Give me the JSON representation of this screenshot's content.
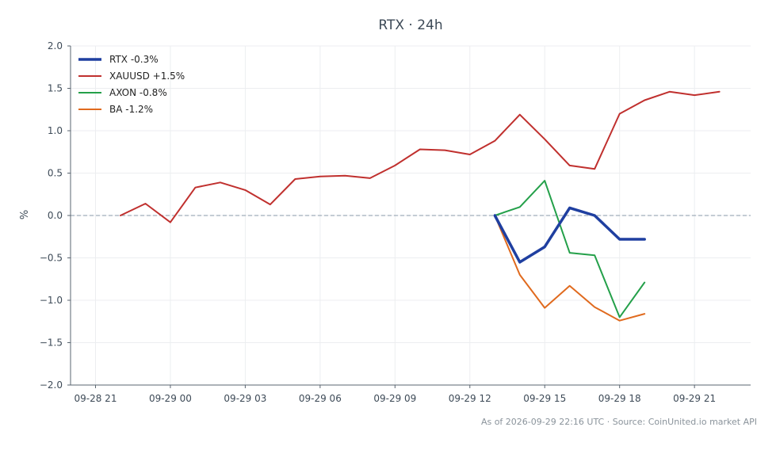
{
  "footer": {
    "note": "As of 2026-09-29 22:16 UTC · Source: CoinUnited.io market API"
  },
  "chart_data": {
    "type": "line",
    "title": "RTX · 24h",
    "xlabel": "",
    "ylabel": "%",
    "ylim": [
      -2.0,
      2.0
    ],
    "yticks": [
      -2.0,
      -1.5,
      -1.0,
      -0.5,
      0.0,
      0.5,
      1.0,
      1.5,
      2.0
    ],
    "ytick_labels": [
      "−2.0",
      "−1.5",
      "−1.0",
      "−0.5",
      "0.0",
      "0.5",
      "1.0",
      "1.5",
      "2.0"
    ],
    "x_unit": "hour",
    "xlim": [
      "2026-09-28 20:00",
      "2026-09-29 23:15"
    ],
    "xticks": [
      "2026-09-28 21:00",
      "2026-09-29 00:00",
      "2026-09-29 03:00",
      "2026-09-29 06:00",
      "2026-09-29 09:00",
      "2026-09-29 12:00",
      "2026-09-29 15:00",
      "2026-09-29 18:00",
      "2026-09-29 21:00"
    ],
    "xtick_labels": [
      "09-28 21",
      "09-29 00",
      "09-29 03",
      "09-29 06",
      "09-29 09",
      "09-29 12",
      "09-29 15",
      "09-29 18",
      "09-29 21"
    ],
    "grid": true,
    "baseline": 0.0,
    "legend_position": "top-left",
    "series": [
      {
        "name": "RTX -0.3%",
        "color": "#1f3fa0",
        "emphasis": true,
        "x": [
          "2026-09-29 13:00",
          "2026-09-29 14:00",
          "2026-09-29 15:00",
          "2026-09-29 16:00",
          "2026-09-29 17:00",
          "2026-09-29 18:00",
          "2026-09-29 19:00"
        ],
        "values": [
          0.0,
          -0.55,
          -0.37,
          0.09,
          0.0,
          -0.28,
          -0.28
        ]
      },
      {
        "name": "XAUUSD +1.5%",
        "color": "#c0302e",
        "emphasis": false,
        "x": [
          "2026-09-28 22:00",
          "2026-09-28 23:00",
          "2026-09-29 00:00",
          "2026-09-29 01:00",
          "2026-09-29 02:00",
          "2026-09-29 03:00",
          "2026-09-29 04:00",
          "2026-09-29 05:00",
          "2026-09-29 06:00",
          "2026-09-29 07:00",
          "2026-09-29 08:00",
          "2026-09-29 09:00",
          "2026-09-29 10:00",
          "2026-09-29 11:00",
          "2026-09-29 12:00",
          "2026-09-29 13:00",
          "2026-09-29 14:00",
          "2026-09-29 15:00",
          "2026-09-29 16:00",
          "2026-09-29 17:00",
          "2026-09-29 18:00",
          "2026-09-29 19:00",
          "2026-09-29 20:00",
          "2026-09-29 21:00",
          "2026-09-29 22:00"
        ],
        "values": [
          0.0,
          0.14,
          -0.08,
          0.33,
          0.39,
          0.3,
          0.13,
          0.43,
          0.46,
          0.47,
          0.44,
          0.59,
          0.78,
          0.77,
          0.72,
          0.88,
          1.19,
          0.9,
          0.59,
          0.55,
          1.2,
          1.36,
          1.46,
          1.42,
          1.46
        ]
      },
      {
        "name": "AXON -0.8%",
        "color": "#24a04a",
        "emphasis": false,
        "x": [
          "2026-09-29 13:00",
          "2026-09-29 14:00",
          "2026-09-29 15:00",
          "2026-09-29 16:00",
          "2026-09-29 17:00",
          "2026-09-29 18:00",
          "2026-09-29 19:00"
        ],
        "values": [
          0.0,
          0.1,
          0.41,
          -0.44,
          -0.47,
          -1.2,
          -0.79
        ]
      },
      {
        "name": "BA -1.2%",
        "color": "#e06a1e",
        "emphasis": false,
        "x": [
          "2026-09-29 13:00",
          "2026-09-29 14:00",
          "2026-09-29 15:00",
          "2026-09-29 16:00",
          "2026-09-29 17:00",
          "2026-09-29 18:00",
          "2026-09-29 19:00"
        ],
        "values": [
          0.0,
          -0.7,
          -1.09,
          -0.83,
          -1.08,
          -1.24,
          -1.16
        ]
      }
    ]
  }
}
